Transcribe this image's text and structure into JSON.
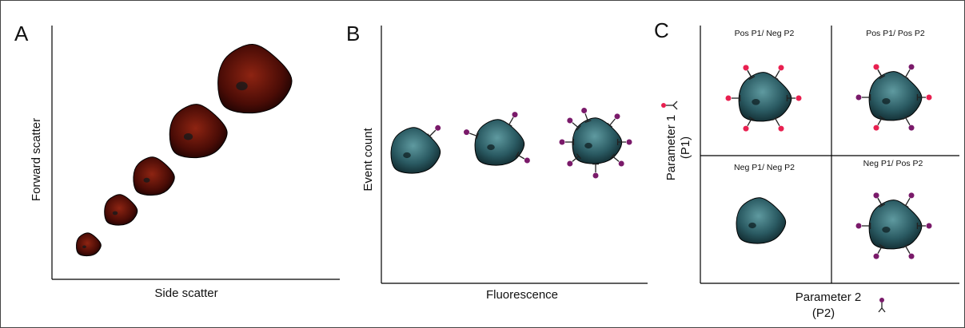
{
  "panels": [
    {
      "label": "A",
      "x_axis_label": "Side scatter",
      "y_axis_label": "Forward scatter"
    },
    {
      "label": "B",
      "x_axis_label": "Fluorescence",
      "y_axis_label": "Event count"
    },
    {
      "label": "C",
      "x_axis_label": [
        "Parameter 2",
        "(P2)"
      ],
      "y_axis_label": [
        "Parameter 1",
        "(P1)"
      ],
      "quadrants": [
        "Pos P1/ Neg P2",
        "Pos P1/ Pos P2",
        "Neg P1/ Neg P2",
        "Neg P1/ Pos P2"
      ]
    }
  ]
}
